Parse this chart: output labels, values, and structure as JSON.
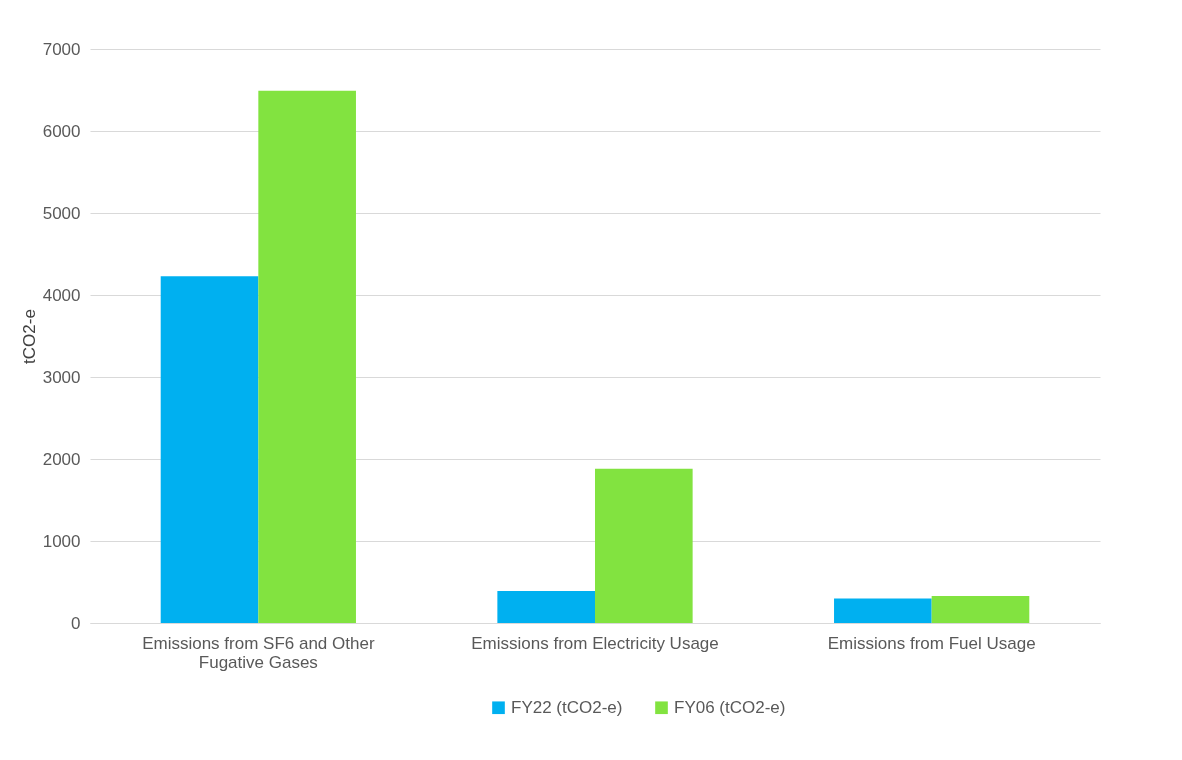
{
  "chart_data": {
    "type": "bar",
    "ylabel": "tCO2-e",
    "categories": [
      "Emissions from SF6 and Other Fugative Gases",
      "Emissions from Electricity Usage",
      "Emissions from Fuel Usage"
    ],
    "series": [
      {
        "name": "FY22 (tCO2-e)",
        "color": "#00b0f0",
        "values": [
          4230,
          390,
          300
        ]
      },
      {
        "name": "FY06 (tCO2-e)",
        "color": "#82e340",
        "values": [
          6490,
          1880,
          330
        ]
      }
    ],
    "ylim": [
      0,
      7000
    ],
    "yticks": [
      0,
      1000,
      2000,
      3000,
      4000,
      5000,
      6000,
      7000
    ],
    "grid": "y",
    "legend": "bottom"
  }
}
